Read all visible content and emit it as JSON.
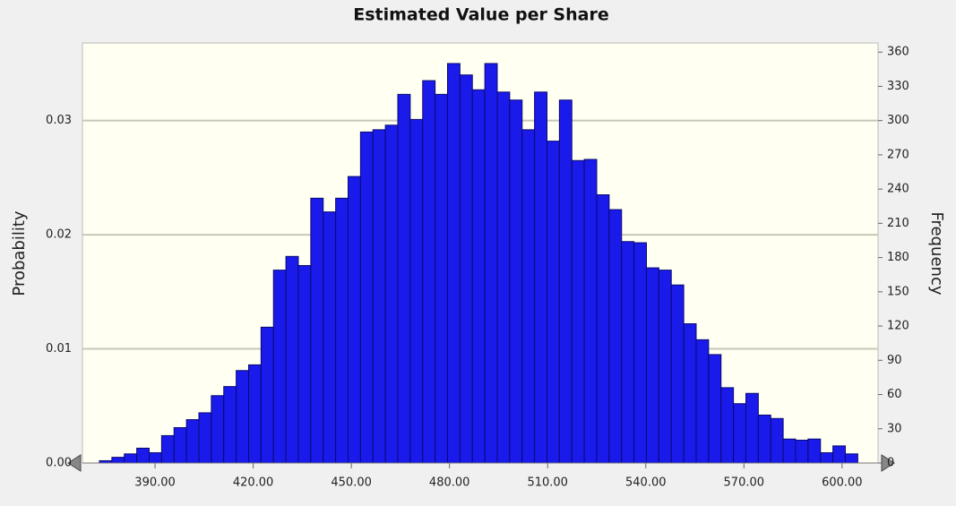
{
  "chart_data": {
    "type": "histogram",
    "title": "Estimated Value per Share",
    "ylabel": "Probability",
    "y2label": "Frequency",
    "bins": [
      373,
      376.8,
      380.6,
      384.4,
      388.2,
      392,
      395.8,
      399.6,
      403.4,
      407.2,
      411,
      414.8,
      418.6,
      422.4,
      426.2,
      430,
      433.8,
      437.6,
      441.4,
      445.2,
      449,
      452.8,
      456.6,
      460.4,
      464.2,
      468,
      471.8,
      475.6,
      479.4,
      483.2,
      487,
      490.8,
      494.6,
      498.4,
      502.2,
      506,
      509.8,
      513.6,
      517.4,
      521.2,
      525,
      528.8,
      532.6,
      536.4,
      540.2,
      544,
      547.8,
      551.6,
      555.4,
      559.2,
      563,
      566.8,
      570.6,
      574.4,
      578.2,
      582,
      585.8,
      589.6,
      593.4,
      597.2,
      601,
      604.8
    ],
    "series": [
      {
        "color": "#1a1aeb",
        "axis": "y2",
        "values": [
          2,
          5,
          8,
          13,
          9,
          24,
          31,
          38,
          44,
          59,
          67,
          81,
          86,
          119,
          169,
          181,
          173,
          232,
          220,
          232,
          251,
          290,
          292,
          296,
          323,
          301,
          335,
          323,
          350,
          340,
          327,
          350,
          325,
          318,
          292,
          325,
          282,
          318,
          265,
          266,
          235,
          222,
          194,
          193,
          171,
          169,
          156,
          122,
          108,
          95,
          66,
          52,
          61,
          42,
          39,
          21,
          20,
          21,
          9,
          15,
          8
        ]
      }
    ],
    "xlim": [
      367.8,
      611
    ],
    "xticks": [
      {
        "value": 390,
        "label": "390.00"
      },
      {
        "value": 420,
        "label": "420.00"
      },
      {
        "value": 450,
        "label": "450.00"
      },
      {
        "value": 480,
        "label": "480.00"
      },
      {
        "value": 510,
        "label": "510.00"
      },
      {
        "value": 540,
        "label": "540.00"
      },
      {
        "value": 570,
        "label": "570.00"
      },
      {
        "value": 600,
        "label": "600.00"
      }
    ],
    "ylim": [
      0,
      0.0368
    ],
    "yticks": [
      {
        "value": 0,
        "label": "0.00"
      },
      0.01,
      0.02,
      0.03
    ],
    "y2lim": [
      0,
      368
    ],
    "y2ticks": [
      0,
      30,
      60,
      90,
      120,
      150,
      180,
      210,
      240,
      270,
      300,
      330,
      360
    ],
    "grid": true
  }
}
